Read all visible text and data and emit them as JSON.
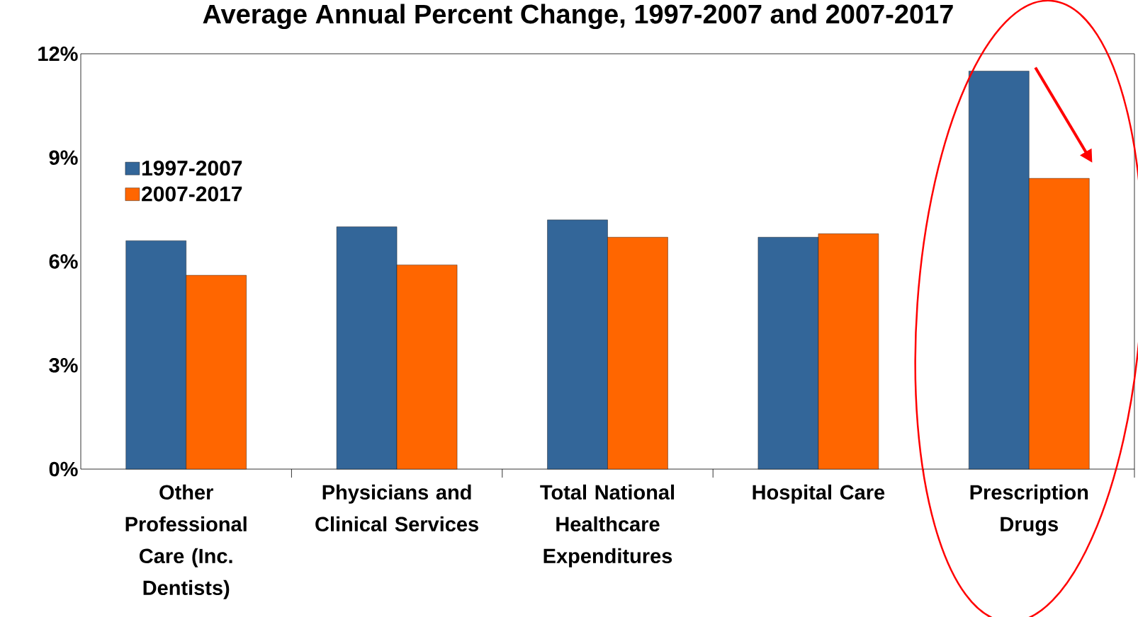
{
  "chart_data": {
    "type": "bar",
    "title": "Average Annual Percent Change, 1997-2007 and 2007-2017",
    "categories": [
      "Other Professional Care (Inc. Dentists)",
      "Physicians and Clinical Services",
      "Total National Healthcare Expenditures",
      "Hospital Care",
      "Prescription Drugs"
    ],
    "series": [
      {
        "name": "1997-2007",
        "color": "#336699",
        "values": [
          6.6,
          7.0,
          7.2,
          6.7,
          11.5
        ]
      },
      {
        "name": "2007-2017",
        "color": "#ff6600",
        "values": [
          5.6,
          5.9,
          6.7,
          6.8,
          8.4
        ]
      }
    ],
    "ylim": [
      0,
      12
    ],
    "yticks": [
      {
        "value": 0,
        "label": "0%"
      },
      {
        "value": 3,
        "label": "3%"
      },
      {
        "value": 6,
        "label": "6%"
      },
      {
        "value": 9,
        "label": "9%"
      },
      {
        "value": 12,
        "label": "12%"
      }
    ],
    "grid": false,
    "legend": "left"
  }
}
